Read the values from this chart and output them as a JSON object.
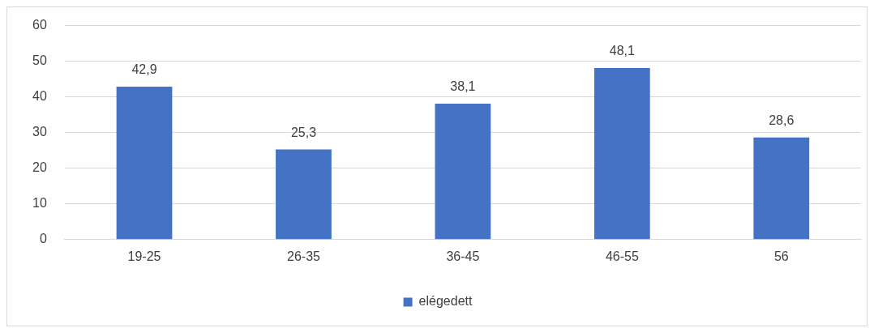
{
  "chart_data": {
    "type": "bar",
    "categories": [
      "19-25",
      "26-35",
      "36-45",
      "46-55",
      "56"
    ],
    "series": [
      {
        "name": "elégedett",
        "color": "#4472c4",
        "values": [
          42.9,
          25.3,
          38.1,
          48.1,
          28.6
        ],
        "value_labels": [
          "42,9",
          "25,3",
          "38,1",
          "48,1",
          "28,6"
        ]
      }
    ],
    "ylim": [
      0,
      60
    ],
    "yticks": [
      0,
      10,
      20,
      30,
      40,
      50,
      60
    ],
    "grid": "y",
    "legend": "bottom"
  }
}
